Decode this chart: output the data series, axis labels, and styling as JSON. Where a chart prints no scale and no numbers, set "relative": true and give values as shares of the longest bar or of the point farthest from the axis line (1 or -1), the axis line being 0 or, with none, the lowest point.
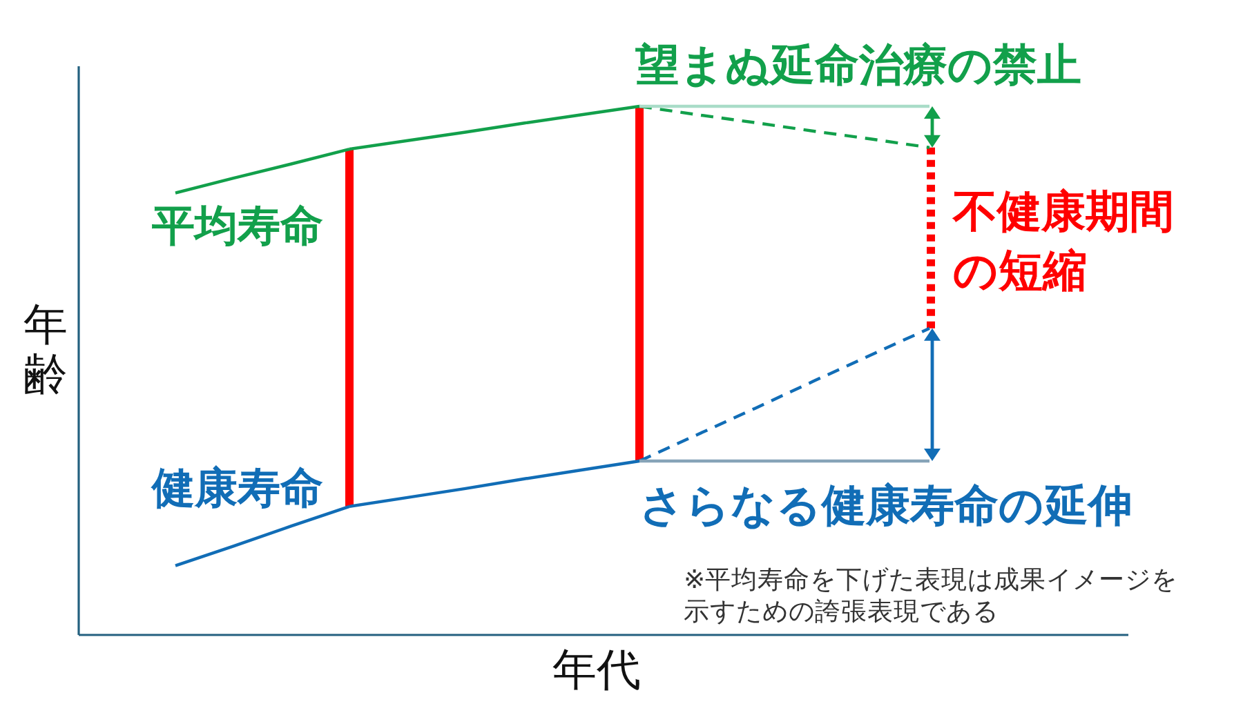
{
  "chart_data": {
    "type": "line",
    "relative": true,
    "xlabel": "年代",
    "ylabel": "年齢",
    "categories": [
      null,
      null,
      null,
      null,
      null,
      null,
      null,
      null,
      null,
      null,
      null,
      null,
      null,
      null
    ],
    "series": [
      {
        "name": "平均寿命",
        "color": "#12a04b",
        "values": [
          0.836,
          0.864,
          0.891,
          0.919,
          null,
          null,
          null,
          null,
          null,
          null,
          null,
          null,
          null,
          null
        ]
      },
      {
        "color": "#12a04b",
        "values": [
          null,
          null,
          null,
          0.919,
          0.935,
          0.951,
          0.968,
          0.984,
          1.0,
          null,
          null,
          null,
          null,
          null
        ]
      },
      {
        "color": "#12a04b",
        "line_style": "dashed",
        "values": [
          null,
          null,
          null,
          null,
          null,
          null,
          null,
          null,
          1.0,
          0.984,
          0.969,
          0.953,
          0.938,
          0.922
        ]
      },
      {
        "name": "健康寿命",
        "color": "#116db6",
        "values": [
          0.131,
          0.168,
          0.206,
          0.243,
          null,
          null,
          null,
          null,
          null,
          null,
          null,
          null,
          null,
          null
        ]
      },
      {
        "color": "#116db6",
        "values": [
          null,
          null,
          null,
          0.243,
          0.26,
          0.277,
          0.295,
          0.312,
          0.329,
          null,
          null,
          null,
          null,
          null
        ]
      },
      {
        "color": "#116db6",
        "line_style": "dashed",
        "values": [
          null,
          null,
          null,
          null,
          null,
          null,
          null,
          null,
          0.329,
          0.379,
          0.429,
          0.48,
          0.53,
          0.58
        ]
      },
      {
        "color": "#a9dcc8",
        "values": [
          null,
          null,
          null,
          null,
          null,
          null,
          null,
          null,
          1.0,
          1.0,
          1.0,
          1.0,
          1.0,
          1.0
        ]
      },
      {
        "color": "#86a3b8",
        "values": [
          null,
          null,
          null,
          null,
          null,
          null,
          null,
          null,
          0.329,
          0.329,
          0.329,
          0.329,
          0.329,
          0.329
        ]
      }
    ],
    "annotations": [
      "望まぬ延命治療の禁止",
      "不健康期間の短縮",
      "さらなる健康寿命の延伸",
      "※平均寿命を下げた表現は成果イメージを示すための誇張表現である"
    ]
  }
}
